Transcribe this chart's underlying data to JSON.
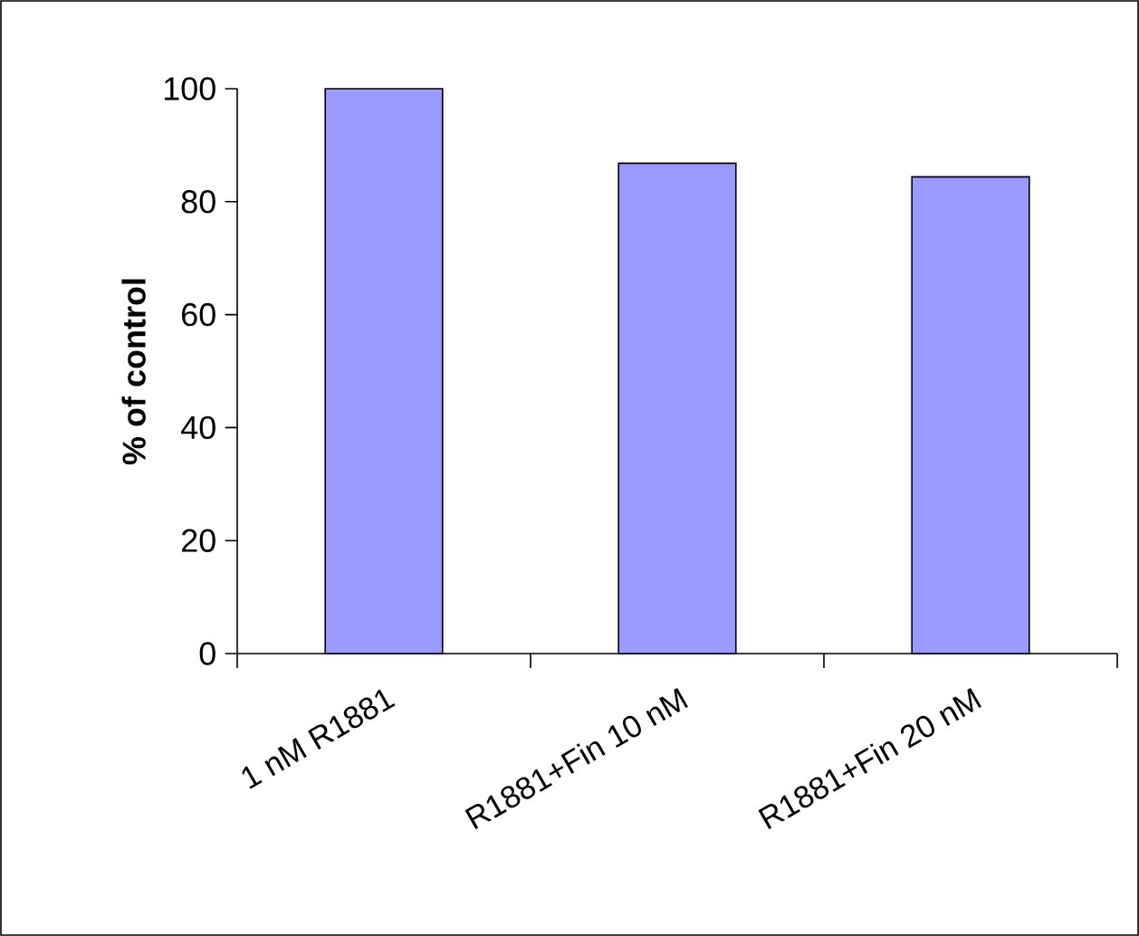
{
  "chart_data": {
    "type": "bar",
    "ylabel": "% of control",
    "categories": [
      "1 nM R1881",
      "R1881+Fin 10 nM",
      "R1881+Fin 20 nM"
    ],
    "values": [
      100,
      86.8,
      84.4
    ],
    "color": "#9999ff",
    "ylim": [
      0,
      100
    ],
    "yticks": [
      0,
      20,
      40,
      60,
      80,
      100
    ],
    "grid": false
  }
}
